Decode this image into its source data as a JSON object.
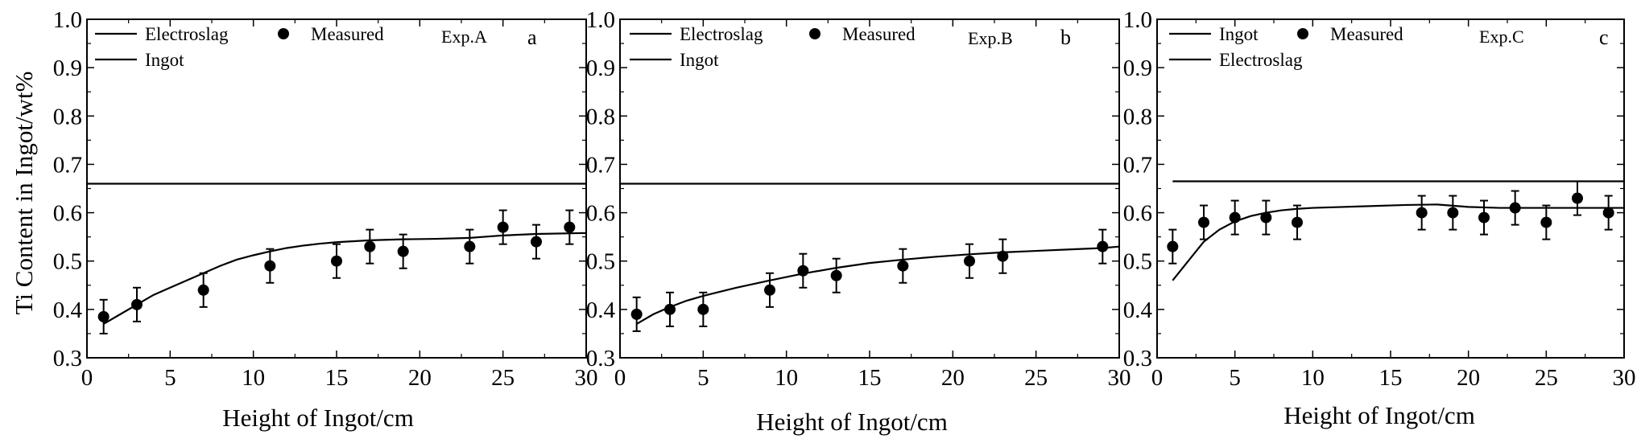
{
  "figure": {
    "ylabel": "Ti Content in Ingot/wt%",
    "xlabel": "Height of Ingot/cm"
  },
  "chart_data": [
    {
      "type": "line",
      "panel": "a",
      "exp_label": "Exp.A",
      "xlabel": "Height of Ingot/cm",
      "ylabel": "Ti Content in Ingot/wt%",
      "xlim": [
        0,
        30
      ],
      "ylim": [
        0.3,
        1.0
      ],
      "x_ticks": [
        "0",
        "5",
        "10",
        "15",
        "20",
        "25",
        "30"
      ],
      "y_ticks": [
        "0.3",
        "0.4",
        "0.5",
        "0.6",
        "0.7",
        "0.8",
        "0.9",
        "1.0"
      ],
      "grid": false,
      "legend": [
        "Electroslag",
        "Measured",
        "Ingot"
      ],
      "series": [
        {
          "name": "Electroslag",
          "kind": "line",
          "x": [
            0,
            30
          ],
          "y": [
            0.66,
            0.66
          ]
        },
        {
          "name": "Ingot",
          "kind": "line",
          "x": [
            1,
            2,
            3,
            4,
            5,
            6,
            7,
            8,
            9,
            10,
            11,
            12,
            13,
            14,
            15,
            17,
            19,
            21,
            23,
            25,
            27,
            30
          ],
          "y": [
            0.37,
            0.39,
            0.41,
            0.43,
            0.445,
            0.46,
            0.475,
            0.49,
            0.503,
            0.512,
            0.52,
            0.527,
            0.532,
            0.536,
            0.539,
            0.543,
            0.545,
            0.546,
            0.548,
            0.553,
            0.556,
            0.558
          ]
        },
        {
          "name": "Measured",
          "kind": "scatter",
          "x": [
            1,
            3,
            7,
            11,
            15,
            17,
            19,
            23,
            25,
            27,
            29
          ],
          "y": [
            0.385,
            0.41,
            0.44,
            0.49,
            0.5,
            0.53,
            0.52,
            0.53,
            0.57,
            0.54,
            0.57
          ],
          "err": [
            0.035,
            0.035,
            0.035,
            0.035,
            0.035,
            0.035,
            0.035,
            0.035,
            0.035,
            0.035,
            0.035
          ]
        }
      ]
    },
    {
      "type": "line",
      "panel": "b",
      "exp_label": "Exp.B",
      "xlabel": "Height of Ingot/cm",
      "ylabel": "",
      "xlim": [
        0,
        30
      ],
      "ylim": [
        0.3,
        1.0
      ],
      "x_ticks": [
        "0",
        "5",
        "10",
        "15",
        "20",
        "25",
        "30"
      ],
      "y_ticks": [
        "0.3",
        "0.4",
        "0.5",
        "0.6",
        "0.7",
        "0.8",
        "0.9",
        "1.0"
      ],
      "grid": false,
      "legend": [
        "Electroslag",
        "Measured",
        "Ingot"
      ],
      "series": [
        {
          "name": "Electroslag",
          "kind": "line",
          "x": [
            0,
            30
          ],
          "y": [
            0.66,
            0.66
          ]
        },
        {
          "name": "Ingot",
          "kind": "line",
          "x": [
            1,
            2,
            3,
            4,
            5,
            7,
            9,
            11,
            13,
            15,
            17,
            19,
            21,
            23,
            25,
            27,
            29,
            30
          ],
          "y": [
            0.37,
            0.39,
            0.405,
            0.418,
            0.428,
            0.445,
            0.46,
            0.474,
            0.486,
            0.496,
            0.503,
            0.509,
            0.514,
            0.518,
            0.521,
            0.524,
            0.527,
            0.53
          ]
        },
        {
          "name": "Measured",
          "kind": "scatter",
          "x": [
            1,
            3,
            5,
            9,
            11,
            13,
            17,
            21,
            23,
            29
          ],
          "y": [
            0.39,
            0.4,
            0.4,
            0.44,
            0.48,
            0.47,
            0.49,
            0.5,
            0.51,
            0.53
          ],
          "err": [
            0.035,
            0.035,
            0.035,
            0.035,
            0.035,
            0.035,
            0.035,
            0.035,
            0.035,
            0.035
          ]
        }
      ]
    },
    {
      "type": "line",
      "panel": "c",
      "exp_label": "Exp.C",
      "xlabel": "Height of Ingot/cm",
      "ylabel": "",
      "xlim": [
        0,
        30
      ],
      "ylim": [
        0.3,
        1.0
      ],
      "x_ticks": [
        "0",
        "5",
        "10",
        "15",
        "20",
        "25",
        "30"
      ],
      "y_ticks": [
        "0.3",
        "0.4",
        "0.5",
        "0.6",
        "0.7",
        "0.8",
        "0.9",
        "1.0"
      ],
      "grid": false,
      "legend": [
        "Ingot",
        "Measured",
        "Electroslag"
      ],
      "series": [
        {
          "name": "Electroslag",
          "kind": "line",
          "x": [
            1,
            30
          ],
          "y": [
            0.665,
            0.665
          ]
        },
        {
          "name": "Ingot",
          "kind": "line",
          "x": [
            1,
            2,
            3,
            4,
            5,
            6,
            7,
            8,
            9,
            10,
            13,
            16,
            18,
            20,
            22,
            24,
            26,
            28,
            30
          ],
          "y": [
            0.46,
            0.5,
            0.54,
            0.565,
            0.582,
            0.593,
            0.6,
            0.605,
            0.608,
            0.61,
            0.613,
            0.616,
            0.617,
            0.612,
            0.61,
            0.61,
            0.61,
            0.61,
            0.61
          ]
        },
        {
          "name": "Measured",
          "kind": "scatter",
          "x": [
            1,
            3,
            5,
            7,
            9,
            17,
            19,
            21,
            23,
            25,
            27,
            29
          ],
          "y": [
            0.53,
            0.58,
            0.59,
            0.59,
            0.58,
            0.6,
            0.6,
            0.59,
            0.61,
            0.58,
            0.63,
            0.6
          ],
          "err": [
            0.035,
            0.035,
            0.035,
            0.035,
            0.035,
            0.035,
            0.035,
            0.035,
            0.035,
            0.035,
            0.035,
            0.035
          ]
        }
      ]
    }
  ]
}
